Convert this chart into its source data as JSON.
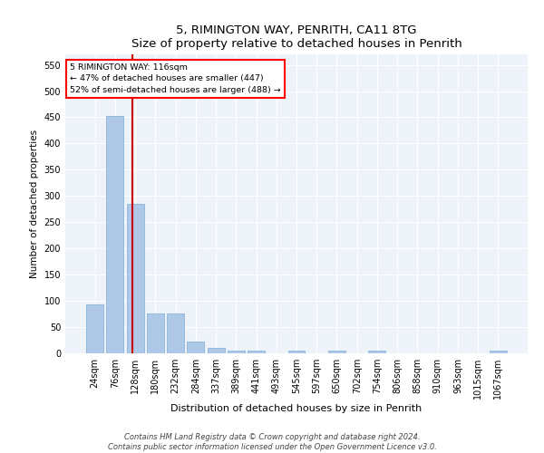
{
  "title": "5, RIMINGTON WAY, PENRITH, CA11 8TG",
  "subtitle": "Size of property relative to detached houses in Penrith",
  "xlabel": "Distribution of detached houses by size in Penrith",
  "ylabel": "Number of detached properties",
  "categories": [
    "24sqm",
    "76sqm",
    "128sqm",
    "180sqm",
    "232sqm",
    "284sqm",
    "337sqm",
    "389sqm",
    "441sqm",
    "493sqm",
    "545sqm",
    "597sqm",
    "650sqm",
    "702sqm",
    "754sqm",
    "806sqm",
    "858sqm",
    "910sqm",
    "963sqm",
    "1015sqm",
    "1067sqm"
  ],
  "values": [
    93,
    453,
    285,
    76,
    76,
    22,
    10,
    6,
    5,
    0,
    5,
    0,
    5,
    0,
    5,
    0,
    0,
    0,
    0,
    0,
    5
  ],
  "bar_color": "#aec8e8",
  "bar_edge_color": "#7aadda",
  "red_line_x": 1.85,
  "annotation_line1": "5 RIMINGTON WAY: 116sqm",
  "annotation_line2": "← 47% of detached houses are smaller (447)",
  "annotation_line3": "52% of semi-detached houses are larger (488) →",
  "annotation_box_color": "white",
  "annotation_box_edge_color": "red",
  "red_line_color": "#cc0000",
  "ylim": [
    0,
    570
  ],
  "yticks": [
    0,
    50,
    100,
    150,
    200,
    250,
    300,
    350,
    400,
    450,
    500,
    550
  ],
  "bg_color": "#eef2f9",
  "grid_color": "#ffffff",
  "footer_line1": "Contains HM Land Registry data © Crown copyright and database right 2024.",
  "footer_line2": "Contains public sector information licensed under the Open Government Licence v3.0."
}
